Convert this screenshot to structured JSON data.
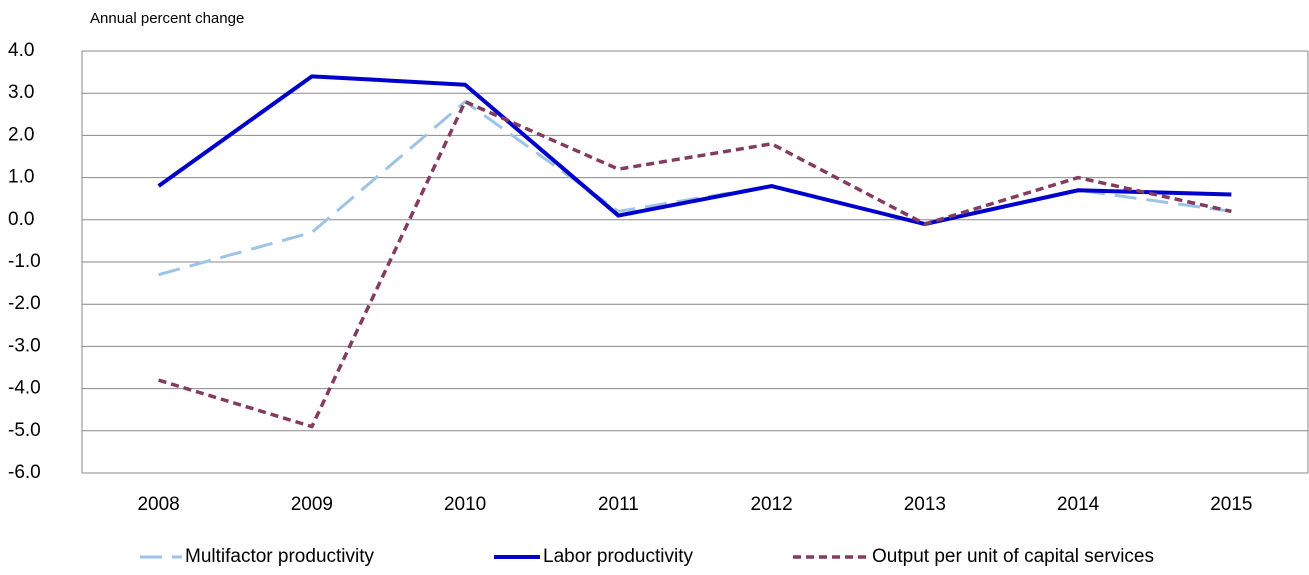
{
  "chart_data": {
    "type": "line",
    "title": "Annual percent change",
    "categories": [
      "2008",
      "2009",
      "2010",
      "2011",
      "2012",
      "2013",
      "2014",
      "2015"
    ],
    "series": [
      {
        "name": "Multifactor productivity",
        "color": "#9dc3e6",
        "values": [
          -1.3,
          -0.3,
          2.8,
          0.2,
          0.8,
          -0.1,
          0.7,
          0.2
        ]
      },
      {
        "name": "Labor productivity",
        "color": "#0000cc",
        "values": [
          0.8,
          3.4,
          3.2,
          0.1,
          0.8,
          -0.1,
          0.7,
          0.6
        ]
      },
      {
        "name": "Output per unit of capital services",
        "color": "#833c5f",
        "values": [
          -3.8,
          -4.9,
          2.8,
          1.2,
          1.8,
          -0.1,
          1.0,
          0.2
        ]
      }
    ],
    "ylim": [
      -6,
      4
    ],
    "yticks": [
      {
        "value": -6,
        "label": "-6.0"
      },
      {
        "value": -5,
        "label": "-5.0"
      },
      {
        "value": -4,
        "label": "-4.0"
      },
      {
        "value": -3,
        "label": "-3.0"
      },
      {
        "value": -2,
        "label": "-2.0"
      },
      {
        "value": -1,
        "label": "-1.0"
      },
      {
        "value": 0,
        "label": "0.0"
      },
      {
        "value": 1,
        "label": "1.0"
      },
      {
        "value": 2,
        "label": "2.0"
      },
      {
        "value": 3,
        "label": "3.0"
      },
      {
        "value": 4,
        "label": "4.0"
      }
    ],
    "grid": true
  }
}
